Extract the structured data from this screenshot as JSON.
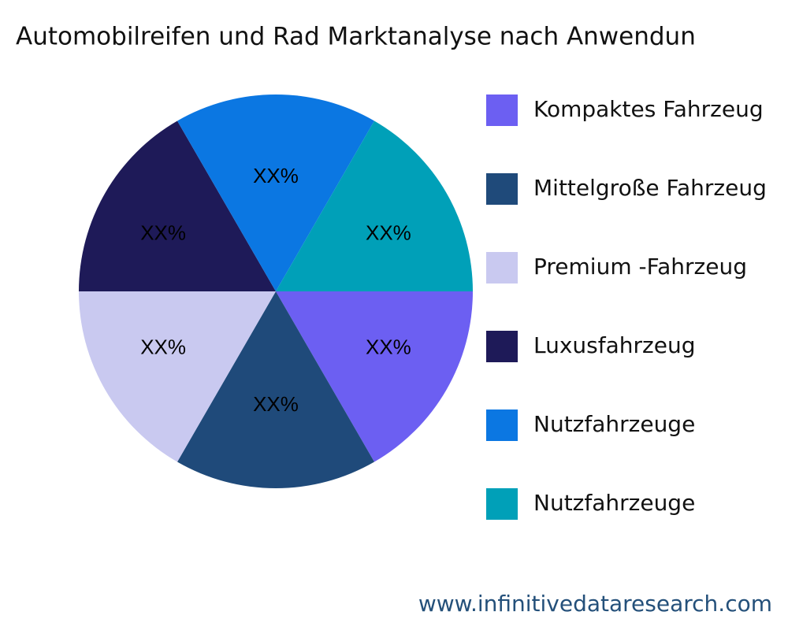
{
  "chart_data": {
    "type": "pie",
    "title": "Automobilreifen und Rad Marktanalyse nach Anwendun",
    "categories": [
      "Kompaktes Fahrzeug",
      "Mittelgroße Fahrzeug",
      "Premium -Fahrzeug",
      "Luxusfahrzeug",
      "Nutzfahrzeuge",
      "Nutzfahrzeuge"
    ],
    "values": [
      16.7,
      16.7,
      16.7,
      16.7,
      16.7,
      16.7
    ],
    "value_labels": [
      "XX%",
      "XX%",
      "XX%",
      "XX%",
      "XX%",
      "XX%"
    ],
    "colors": [
      "#6c5ff2",
      "#1f4a7a",
      "#c9c9f0",
      "#1e1a58",
      "#0b77e2",
      "#00a0b8"
    ],
    "legend": "right",
    "watermark": "www.infinitivedataresearch.com"
  }
}
